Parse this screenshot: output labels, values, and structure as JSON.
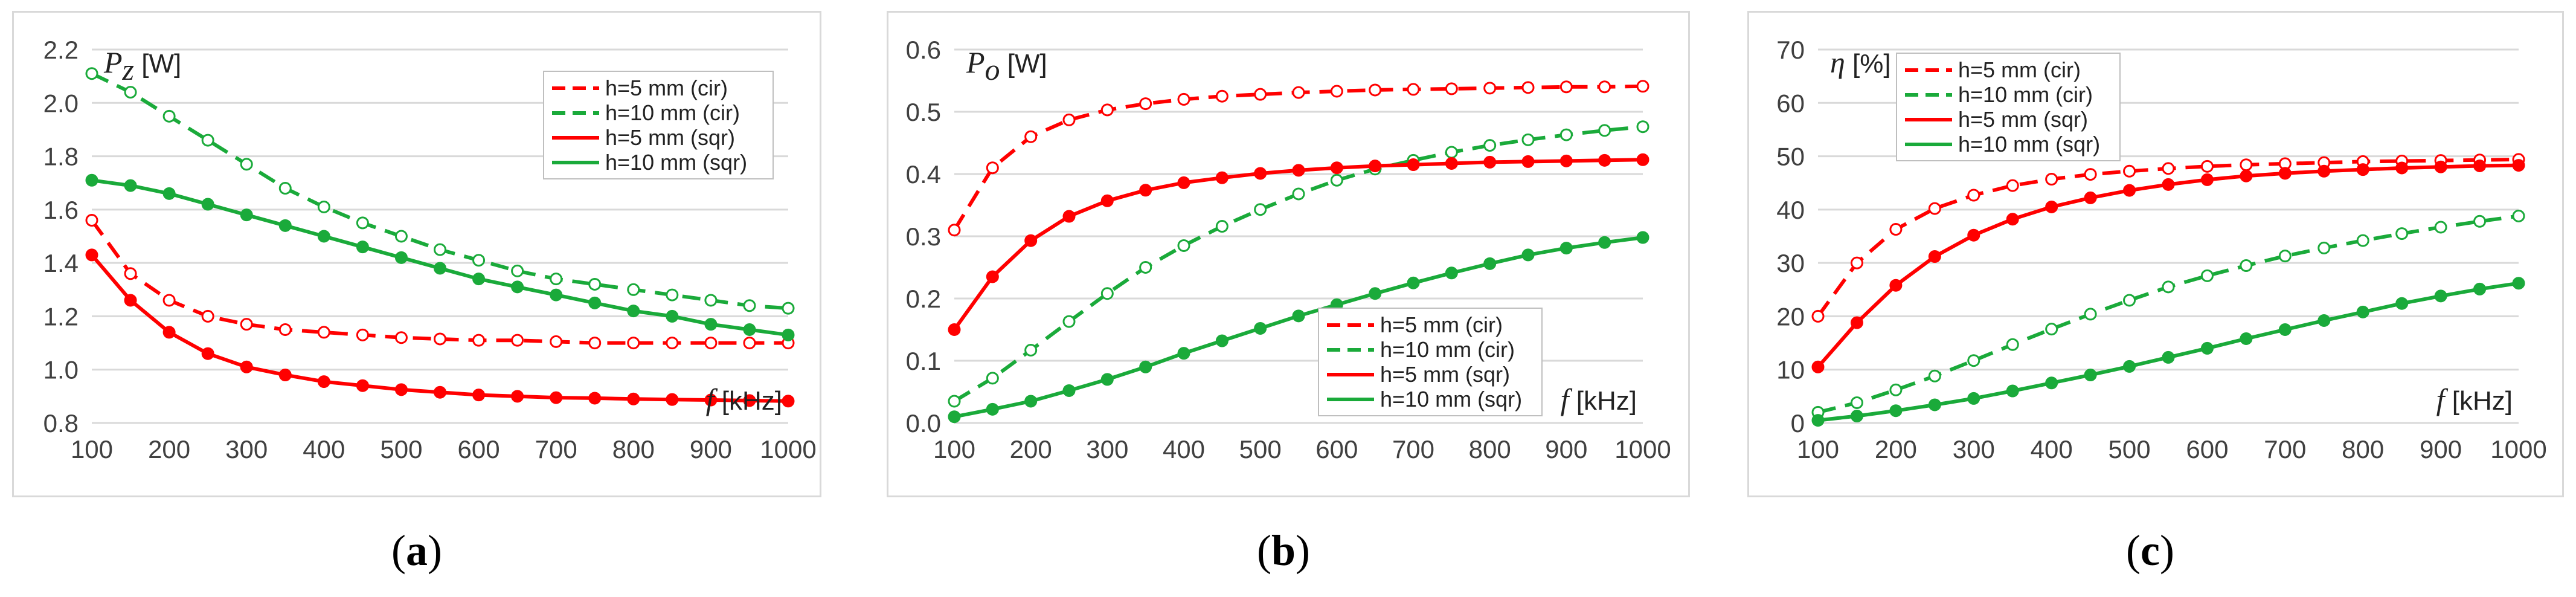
{
  "colors": {
    "red": "#ff0000",
    "green": "#1aaa3a",
    "grid": "#d9d9d9",
    "frame": "#bfbfbf"
  },
  "chart_data": [
    {
      "type": "line",
      "panel_label": "(a)",
      "ylabel_symbol": "P",
      "ylabel_subscript": "z",
      "ylabel_unit": " [W]",
      "xlabel_symbol": "f",
      "xlabel_unit": " [kHz]",
      "ylim": [
        0.8,
        2.2
      ],
      "yticks": [
        "0.8",
        "1.0",
        "1.2",
        "1.4",
        "1.6",
        "1.8",
        "2.0",
        "2.2"
      ],
      "xlim": [
        100,
        1000
      ],
      "xticks": [
        "100",
        "200",
        "300",
        "400",
        "500",
        "600",
        "700",
        "800",
        "900",
        "1000"
      ],
      "legend_position": "top-right",
      "x": [
        100,
        150,
        200,
        250,
        300,
        350,
        400,
        450,
        500,
        550,
        600,
        650,
        700,
        750,
        800,
        850,
        900,
        950,
        1000
      ],
      "series": [
        {
          "name": "h=5 mm (cir)",
          "color": "red",
          "dashed": true,
          "marker": "open",
          "values": [
            1.56,
            1.36,
            1.26,
            1.2,
            1.17,
            1.15,
            1.14,
            1.13,
            1.12,
            1.115,
            1.11,
            1.11,
            1.105,
            1.1,
            1.1,
            1.1,
            1.1,
            1.1,
            1.1
          ]
        },
        {
          "name": "h=10 mm (cir)",
          "color": "green",
          "dashed": true,
          "marker": "open",
          "values": [
            2.11,
            2.04,
            1.95,
            1.86,
            1.77,
            1.68,
            1.61,
            1.55,
            1.5,
            1.45,
            1.41,
            1.37,
            1.34,
            1.32,
            1.3,
            1.28,
            1.26,
            1.24,
            1.23
          ]
        },
        {
          "name": "h=5 mm (sqr)",
          "color": "red",
          "dashed": false,
          "marker": "filled",
          "values": [
            1.43,
            1.26,
            1.14,
            1.06,
            1.01,
            0.98,
            0.955,
            0.94,
            0.925,
            0.915,
            0.905,
            0.9,
            0.895,
            0.893,
            0.89,
            0.888,
            0.886,
            0.884,
            0.882
          ]
        },
        {
          "name": "h=10 mm (sqr)",
          "color": "green",
          "dashed": false,
          "marker": "filled",
          "values": [
            1.71,
            1.69,
            1.66,
            1.62,
            1.58,
            1.54,
            1.5,
            1.46,
            1.42,
            1.38,
            1.34,
            1.31,
            1.28,
            1.25,
            1.22,
            1.2,
            1.17,
            1.15,
            1.13
          ]
        }
      ]
    },
    {
      "type": "line",
      "panel_label": "(b)",
      "ylabel_symbol": "P",
      "ylabel_subscript": "o",
      "ylabel_unit": " [W]",
      "xlabel_symbol": "f",
      "xlabel_unit": " [kHz]",
      "ylim": [
        0.0,
        0.6
      ],
      "yticks": [
        "0.0",
        "0.1",
        "0.2",
        "0.3",
        "0.4",
        "0.5",
        "0.6"
      ],
      "xlim": [
        100,
        1000
      ],
      "xticks": [
        "100",
        "200",
        "300",
        "400",
        "500",
        "600",
        "700",
        "800",
        "900",
        "1000"
      ],
      "legend_position": "bottom-right",
      "x": [
        100,
        150,
        200,
        250,
        300,
        350,
        400,
        450,
        500,
        550,
        600,
        650,
        700,
        750,
        800,
        850,
        900,
        950,
        1000
      ],
      "series": [
        {
          "name": "h=5 mm (cir)",
          "color": "red",
          "dashed": true,
          "marker": "open",
          "values": [
            0.31,
            0.41,
            0.46,
            0.487,
            0.503,
            0.513,
            0.52,
            0.525,
            0.528,
            0.531,
            0.533,
            0.535,
            0.536,
            0.537,
            0.538,
            0.539,
            0.54,
            0.54,
            0.541
          ]
        },
        {
          "name": "h=10 mm (cir)",
          "color": "green",
          "dashed": true,
          "marker": "open",
          "values": [
            0.035,
            0.072,
            0.117,
            0.163,
            0.208,
            0.25,
            0.285,
            0.316,
            0.343,
            0.368,
            0.39,
            0.408,
            0.422,
            0.435,
            0.446,
            0.455,
            0.463,
            0.47,
            0.476
          ]
        },
        {
          "name": "h=5 mm (sqr)",
          "color": "red",
          "dashed": false,
          "marker": "filled",
          "values": [
            0.15,
            0.235,
            0.293,
            0.332,
            0.357,
            0.374,
            0.386,
            0.394,
            0.401,
            0.406,
            0.41,
            0.413,
            0.415,
            0.417,
            0.419,
            0.42,
            0.421,
            0.422,
            0.423
          ]
        },
        {
          "name": "h=10 mm (sqr)",
          "color": "green",
          "dashed": false,
          "marker": "filled",
          "values": [
            0.01,
            0.022,
            0.035,
            0.052,
            0.07,
            0.09,
            0.112,
            0.132,
            0.152,
            0.172,
            0.19,
            0.208,
            0.225,
            0.241,
            0.256,
            0.27,
            0.281,
            0.29,
            0.298
          ]
        }
      ]
    },
    {
      "type": "line",
      "panel_label": "(c)",
      "ylabel_symbol": "η",
      "ylabel_subscript": "",
      "ylabel_unit": " [%]",
      "xlabel_symbol": "f",
      "xlabel_unit": " [kHz]",
      "ylim": [
        0,
        70
      ],
      "yticks": [
        "0",
        "10",
        "20",
        "30",
        "40",
        "50",
        "60",
        "70"
      ],
      "xlim": [
        100,
        1000
      ],
      "xticks": [
        "100",
        "200",
        "300",
        "400",
        "500",
        "600",
        "700",
        "800",
        "900",
        "1000"
      ],
      "legend_position": "top-left",
      "x": [
        100,
        150,
        200,
        250,
        300,
        350,
        400,
        450,
        500,
        550,
        600,
        650,
        700,
        750,
        800,
        850,
        900,
        950,
        1000
      ],
      "series": [
        {
          "name": "h=5 mm (cir)",
          "color": "red",
          "dashed": true,
          "marker": "open",
          "values": [
            20,
            30,
            36.3,
            40.2,
            42.7,
            44.5,
            45.7,
            46.6,
            47.2,
            47.7,
            48.1,
            48.4,
            48.6,
            48.8,
            49.0,
            49.1,
            49.2,
            49.3,
            49.4
          ]
        },
        {
          "name": "h=10 mm (cir)",
          "color": "green",
          "dashed": true,
          "marker": "open",
          "values": [
            2,
            3.8,
            6.2,
            8.8,
            11.7,
            14.7,
            17.6,
            20.4,
            23.0,
            25.5,
            27.6,
            29.5,
            31.3,
            32.8,
            34.2,
            35.5,
            36.7,
            37.8,
            38.8
          ]
        },
        {
          "name": "h=5 mm (sqr)",
          "color": "red",
          "dashed": false,
          "marker": "filled",
          "values": [
            10.5,
            18.8,
            25.8,
            31.2,
            35.2,
            38.2,
            40.5,
            42.2,
            43.6,
            44.7,
            45.6,
            46.3,
            46.8,
            47.2,
            47.5,
            47.8,
            48.0,
            48.2,
            48.3
          ]
        },
        {
          "name": "h=10 mm (sqr)",
          "color": "green",
          "dashed": false,
          "marker": "filled",
          "values": [
            0.5,
            1.3,
            2.3,
            3.4,
            4.6,
            6.0,
            7.5,
            9.0,
            10.6,
            12.3,
            14.0,
            15.8,
            17.5,
            19.2,
            20.8,
            22.4,
            23.8,
            25.1,
            26.2
          ]
        }
      ]
    }
  ]
}
